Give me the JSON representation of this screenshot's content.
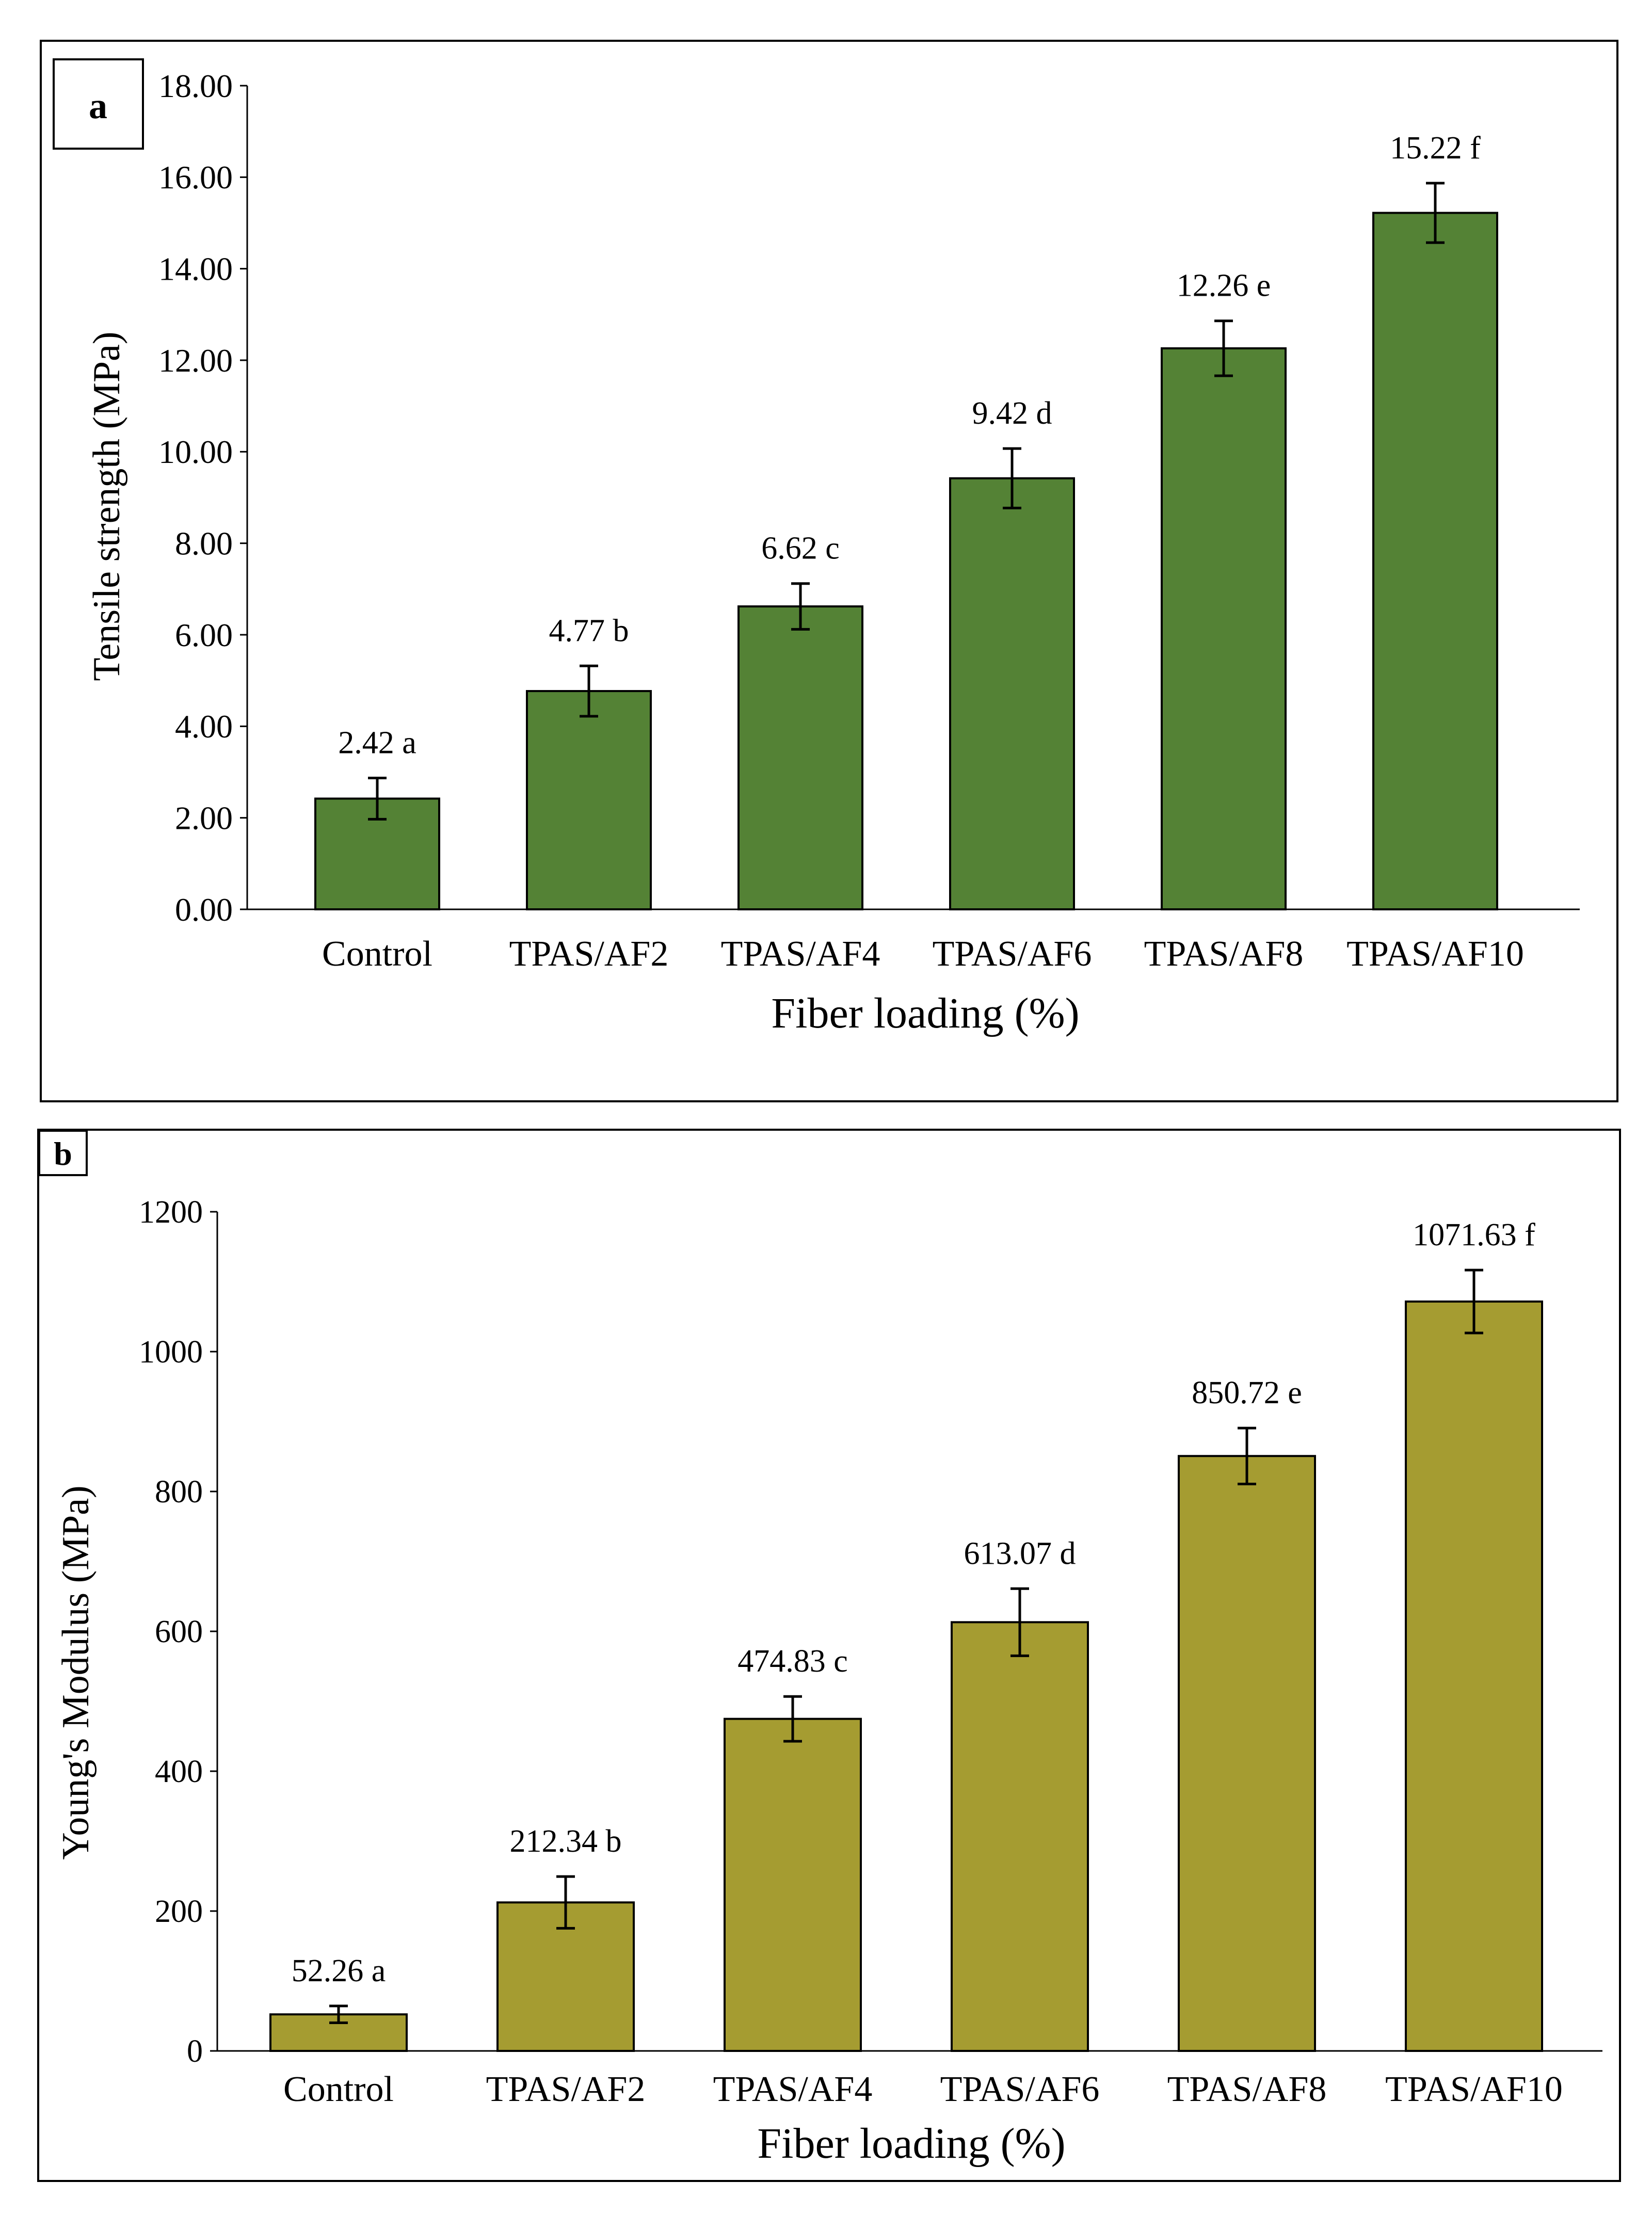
{
  "chart_data": [
    {
      "type": "bar",
      "panel_label": "a",
      "categories": [
        "Control",
        "TPAS/AF2",
        "TPAS/AF4",
        "TPAS/AF6",
        "TPAS/AF8",
        "TPAS/AF10"
      ],
      "values": [
        2.42,
        4.77,
        6.62,
        9.42,
        12.26,
        15.22
      ],
      "errors": [
        0.45,
        0.55,
        0.5,
        0.65,
        0.6,
        0.65
      ],
      "data_labels": [
        "2.42 a",
        "4.77 b",
        "6.62 c",
        "9.42 d",
        "12.26 e",
        "15.22 f"
      ],
      "xlabel": "Fiber loading (%)",
      "ylabel": "Tensile strength (MPa)",
      "ylim": [
        0,
        18
      ],
      "yticks": [
        0,
        2,
        4,
        6,
        8,
        10,
        12,
        14,
        16,
        18
      ],
      "ytick_labels": [
        "0.00",
        "2.00",
        "4.00",
        "6.00",
        "8.00",
        "10.00",
        "12.00",
        "14.00",
        "16.00",
        "18.00"
      ],
      "bar_color": "#548235",
      "grid": false
    },
    {
      "type": "bar",
      "panel_label": "b",
      "categories": [
        "Control",
        "TPAS/AF2",
        "TPAS/AF4",
        "TPAS/AF6",
        "TPAS/AF8",
        "TPAS/AF10"
      ],
      "values": [
        52.26,
        212.34,
        474.83,
        613.07,
        850.72,
        1071.63
      ],
      "errors": [
        12,
        37,
        32,
        48,
        40,
        45
      ],
      "data_labels": [
        "52.26 a",
        "212.34 b",
        "474.83 c",
        "613.07 d",
        "850.72 e",
        "1071.63 f"
      ],
      "xlabel": "Fiber loading (%)",
      "ylabel": "Young's Modulus (MPa)",
      "ylim": [
        0,
        1200
      ],
      "yticks": [
        0,
        200,
        400,
        600,
        800,
        1000,
        1200
      ],
      "ytick_labels": [
        "0",
        "200",
        "400",
        "600",
        "800",
        "1000",
        "1200"
      ],
      "bar_color": "#A59C31",
      "grid": false
    }
  ]
}
